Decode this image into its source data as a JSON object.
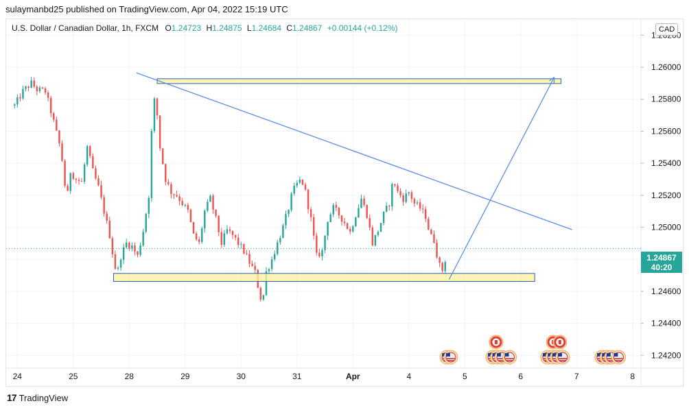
{
  "header": {
    "text": "sulaymanbd25 published on TradingView.com, Apr 04, 2022 15:19 UTC"
  },
  "legend": {
    "symbol": "U.S. Dollar / Canadian Dollar, 1h, FXCM",
    "o_label": "O",
    "o_value": "1.24723",
    "h_label": "H",
    "h_value": "1.24875",
    "l_label": "L",
    "l_value": "1.24684",
    "c_label": "C",
    "c_value": "1.24867",
    "change": "+0.00144 (+0.12%)"
  },
  "currency_button": "CAD",
  "last_price": {
    "price": "1.24867",
    "countdown": "40:20"
  },
  "footer": {
    "brand": "TradingView",
    "logo": "17"
  },
  "chart_data": {
    "type": "candlestick",
    "xlabel": "",
    "ylabel": "",
    "ylim": [
      1.2412,
      1.263
    ],
    "y_ticks": [
      "1.26200",
      "1.26000",
      "1.25800",
      "1.25600",
      "1.25400",
      "1.25200",
      "1.25000",
      "1.24800",
      "1.24600",
      "1.24400",
      "1.24200"
    ],
    "x_ticks": [
      "24",
      "25",
      "28",
      "29",
      "30",
      "31",
      "Apr",
      "4",
      "5",
      "6",
      "7",
      "8"
    ],
    "x_range": [
      -0.2,
      11.15
    ],
    "colors": {
      "up": "#26a69a",
      "down": "#ef5350",
      "line": "#5b8ee0",
      "box_fill": "#fbf3a3",
      "box_stroke": "#2a5bb5",
      "last_price_line": "#26a69a"
    },
    "path_points": [
      [
        -0.05,
        1.2576
      ],
      [
        0.1,
        1.2585
      ],
      [
        0.25,
        1.259
      ],
      [
        0.35,
        1.2586
      ],
      [
        0.5,
        1.2585
      ],
      [
        0.62,
        1.257
      ],
      [
        0.75,
        1.2552
      ],
      [
        0.82,
        1.2538
      ],
      [
        0.88,
        1.2515
      ],
      [
        0.95,
        1.2535
      ],
      [
        1.05,
        1.253
      ],
      [
        1.15,
        1.2528
      ],
      [
        1.25,
        1.255
      ],
      [
        1.35,
        1.2535
      ],
      [
        1.45,
        1.2525
      ],
      [
        1.55,
        1.251
      ],
      [
        1.65,
        1.2495
      ],
      [
        1.72,
        1.248
      ],
      [
        1.78,
        1.247
      ],
      [
        1.85,
        1.2482
      ],
      [
        1.95,
        1.249
      ],
      [
        2.05,
        1.2488
      ],
      [
        2.15,
        1.2482
      ],
      [
        2.25,
        1.2498
      ],
      [
        2.35,
        1.252
      ],
      [
        2.42,
        1.2575
      ],
      [
        2.47,
        1.2582
      ],
      [
        2.55,
        1.255
      ],
      [
        2.65,
        1.253
      ],
      [
        2.75,
        1.2522
      ],
      [
        2.85,
        1.252
      ],
      [
        2.95,
        1.2515
      ],
      [
        3.05,
        1.251
      ],
      [
        3.15,
        1.2495
      ],
      [
        3.25,
        1.249
      ],
      [
        3.35,
        1.251
      ],
      [
        3.45,
        1.2518
      ],
      [
        3.55,
        1.2505
      ],
      [
        3.65,
        1.249
      ],
      [
        3.75,
        1.2498
      ],
      [
        3.85,
        1.2495
      ],
      [
        3.95,
        1.249
      ],
      [
        4.05,
        1.2485
      ],
      [
        4.15,
        1.2478
      ],
      [
        4.25,
        1.2472
      ],
      [
        4.32,
        1.246
      ],
      [
        4.38,
        1.2452
      ],
      [
        4.45,
        1.2472
      ],
      [
        4.55,
        1.248
      ],
      [
        4.65,
        1.249
      ],
      [
        4.75,
        1.25
      ],
      [
        4.85,
        1.2512
      ],
      [
        4.92,
        1.2522
      ],
      [
        5.0,
        1.2527
      ],
      [
        5.08,
        1.253
      ],
      [
        5.15,
        1.2522
      ],
      [
        5.25,
        1.2505
      ],
      [
        5.35,
        1.2482
      ],
      [
        5.45,
        1.2485
      ],
      [
        5.55,
        1.2505
      ],
      [
        5.65,
        1.2512
      ],
      [
        5.75,
        1.2508
      ],
      [
        5.85,
        1.2503
      ],
      [
        5.95,
        1.2497
      ],
      [
        6.05,
        1.2508
      ],
      [
        6.15,
        1.2518
      ],
      [
        6.25,
        1.2508
      ],
      [
        6.35,
        1.249
      ],
      [
        6.45,
        1.2498
      ],
      [
        6.55,
        1.2508
      ],
      [
        6.65,
        1.2515
      ],
      [
        6.72,
        1.253
      ],
      [
        6.8,
        1.2522
      ],
      [
        6.9,
        1.2518
      ],
      [
        7.0,
        1.2522
      ],
      [
        7.1,
        1.2515
      ],
      [
        7.2,
        1.2512
      ],
      [
        7.3,
        1.2507
      ],
      [
        7.38,
        1.2495
      ],
      [
        7.45,
        1.2492
      ],
      [
        7.52,
        1.248
      ],
      [
        7.58,
        1.2472
      ],
      [
        7.63,
        1.2475
      ],
      [
        7.68,
        1.24867
      ]
    ],
    "annotations": {
      "resistance_box": {
        "x1": 2.5,
        "x2": 9.72,
        "y_low": 1.25898,
        "y_high": 1.25928
      },
      "support_box": {
        "x1": 1.72,
        "x2": 9.25,
        "y_low": 1.24662,
        "y_high": 1.24712
      },
      "trendline": {
        "x1": 2.13,
        "y1": 1.25965,
        "x2": 9.92,
        "y2": 1.24985
      },
      "arrow": {
        "x1": 7.72,
        "y1": 1.24675,
        "x2": 9.6,
        "y2": 1.25938
      },
      "last_price_y": 1.24867
    },
    "events": [
      {
        "type": "us-flag",
        "x": 7.68
      },
      {
        "type": "us-flag",
        "x": 7.75
      },
      {
        "type": "us-flag",
        "x": 8.5
      },
      {
        "type": "us-flag",
        "x": 8.58
      },
      {
        "type": "us-flag",
        "x": 8.66
      },
      {
        "type": "us-flag",
        "x": 8.8
      },
      {
        "type": "us-flag",
        "x": 9.48
      },
      {
        "type": "us-flag",
        "x": 9.57
      },
      {
        "type": "us-flag",
        "x": 9.65
      },
      {
        "type": "us-flag",
        "x": 9.75
      },
      {
        "type": "us-flag",
        "x": 10.45
      },
      {
        "type": "us-flag",
        "x": 10.54
      },
      {
        "type": "us-flag",
        "x": 10.62
      },
      {
        "type": "us-flag",
        "x": 10.75
      },
      {
        "type": "ca-flag",
        "x": 8.56
      },
      {
        "type": "ca-flag",
        "x": 9.58
      },
      {
        "type": "ca-flag",
        "x": 9.7
      }
    ]
  }
}
